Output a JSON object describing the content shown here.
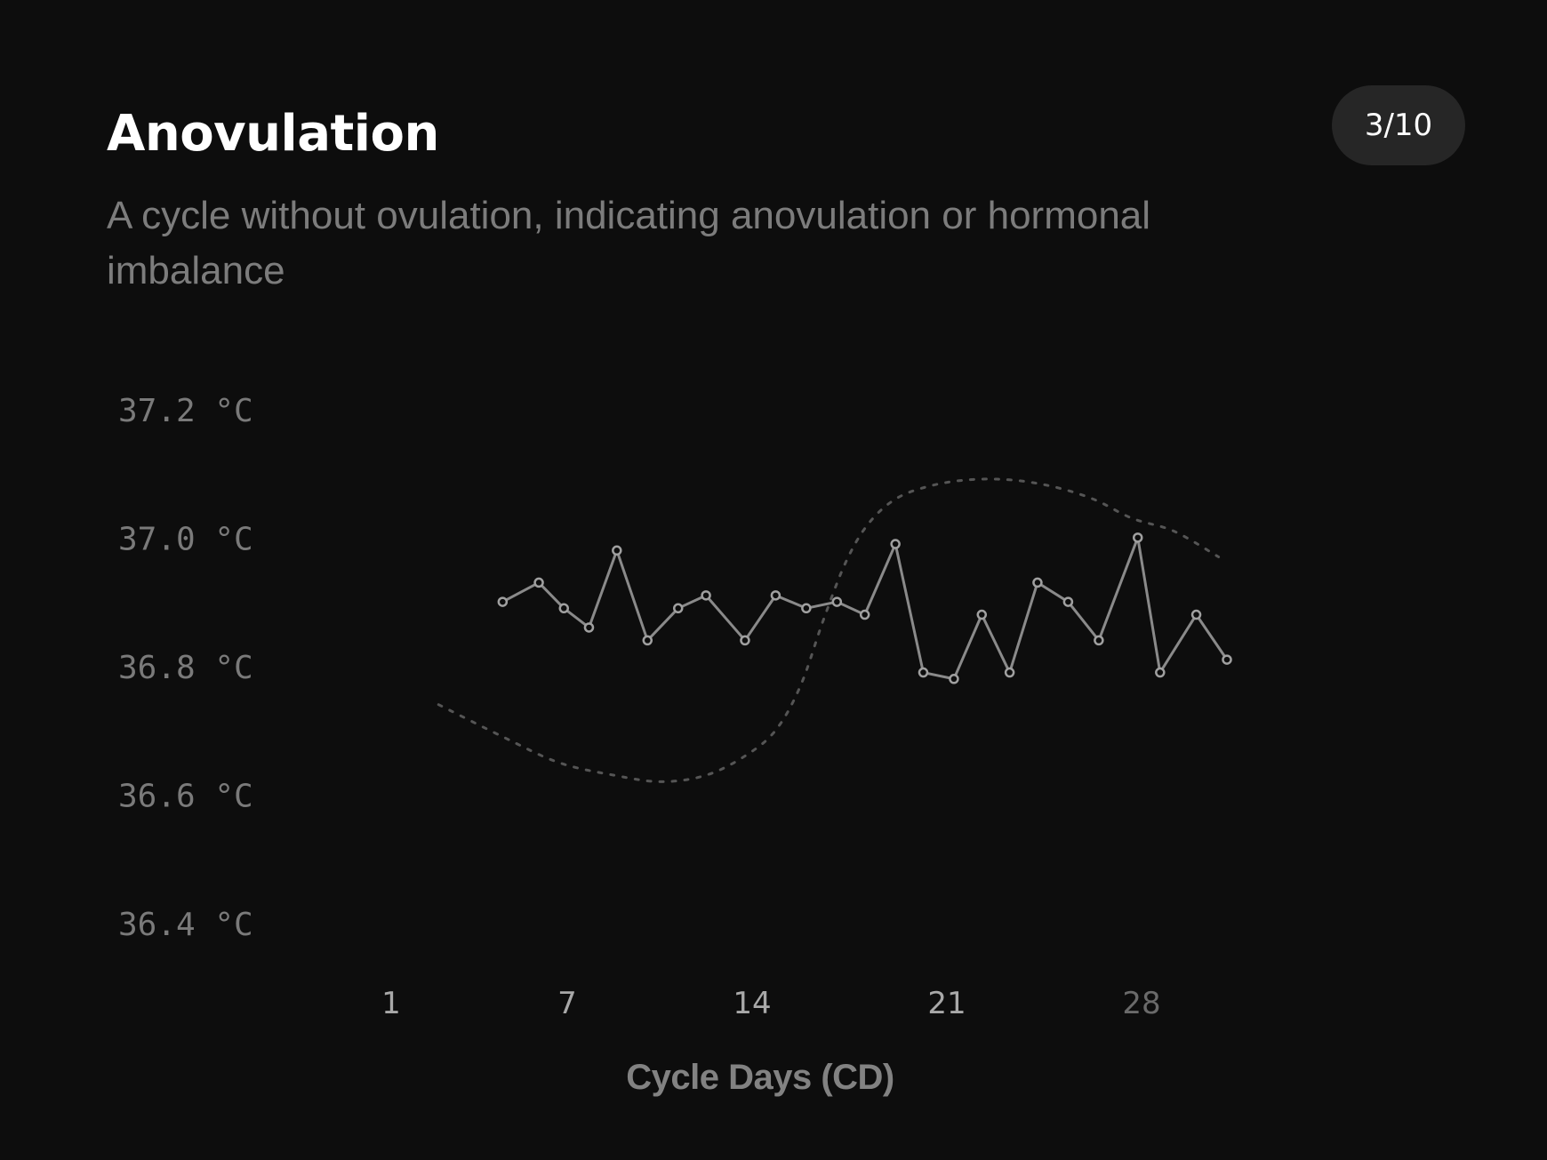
{
  "header": {
    "title": "Anovulation",
    "subtitle": "A cycle without ovulation, indicating anovulation or hormonal imbalance",
    "page_indicator": "3/10"
  },
  "colors": {
    "background": "#0d0d0d",
    "series_line": "#8a8a8a",
    "reference_curve": "#555555",
    "gridline": "#2a2a2a",
    "badge_bg": "#262626"
  },
  "chart_data": {
    "type": "line",
    "xlabel": "Cycle Days (CD)",
    "ylabel": "",
    "x_ticks": [
      1,
      7,
      14,
      21,
      28
    ],
    "y_ticks": [
      37.2,
      37.0,
      36.8,
      36.6,
      36.4
    ],
    "y_tick_labels": [
      "37.2 °C",
      "37.0 °C",
      "36.8 °C",
      "36.6 °C",
      "36.4 °C"
    ],
    "xlim": [
      1,
      31
    ],
    "ylim": [
      36.4,
      37.2
    ],
    "grid": true,
    "series": [
      {
        "style": "solid-with-markers",
        "x": [
          5,
          6.3,
          7.2,
          8.1,
          9.1,
          10.2,
          11.3,
          12.3,
          13.7,
          14.8,
          15.9,
          17,
          18,
          19.1,
          20.1,
          21.2,
          22.2,
          23.2,
          24.2,
          25.3,
          26.4,
          27.8,
          28.6,
          29.9,
          31
        ],
        "y": [
          36.93,
          36.96,
          36.92,
          36.89,
          37.01,
          36.87,
          36.92,
          36.94,
          36.87,
          36.94,
          36.92,
          36.93,
          36.91,
          37.02,
          36.82,
          36.81,
          36.91,
          36.82,
          36.96,
          36.93,
          36.87,
          37.03,
          36.82,
          36.91,
          36.84
        ]
      },
      {
        "style": "dotted-reference",
        "x": [
          2.7,
          5,
          7,
          9,
          10.7,
          12.3,
          13.7,
          14.8,
          15.7,
          16.5,
          17.3,
          18.1,
          19.1,
          20.3,
          21.7,
          23.2,
          24.7,
          26.2,
          27.6,
          29.1,
          30.7
        ],
        "y": [
          36.77,
          36.72,
          36.68,
          36.66,
          36.65,
          36.66,
          36.69,
          36.73,
          36.8,
          36.9,
          36.99,
          37.05,
          37.09,
          37.11,
          37.12,
          37.12,
          37.11,
          37.09,
          37.06,
          37.04,
          37.0
        ]
      }
    ]
  }
}
